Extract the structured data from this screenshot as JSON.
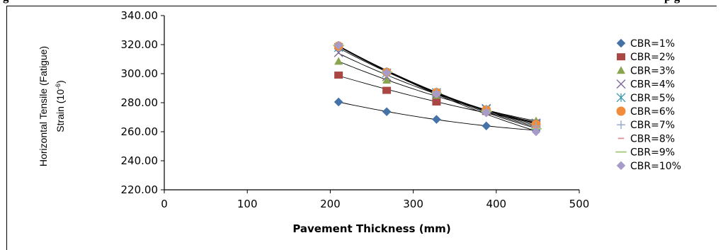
{
  "header": {
    "caption_left": "g",
    "caption_right": "p     g"
  },
  "chart_data": {
    "type": "scatter",
    "title": "",
    "xlabel": "Pavement Thickness (mm)",
    "ylabel_line1": "Horizontal Tensile (Fatigue)",
    "ylabel_line2": "Strain (10",
    "ylabel_exp": "-6",
    "ylabel_end": ")",
    "xlim": [
      0,
      500
    ],
    "ylim": [
      220,
      340
    ],
    "x_ticks": [
      0,
      100,
      200,
      300,
      400,
      500
    ],
    "x_tick_labels": [
      "0",
      "100",
      "200",
      "300",
      "400",
      "500"
    ],
    "y_ticks": [
      220,
      240,
      260,
      280,
      300,
      320,
      340
    ],
    "y_tick_labels": [
      "220.00",
      "240.00",
      "260.00",
      "280.00",
      "300.00",
      "320.00",
      "340.00"
    ],
    "grid": false,
    "legend_position": "right",
    "trendlines": true,
    "x": [
      210,
      268,
      328,
      388,
      448
    ],
    "series": [
      {
        "name": "CBR=1%",
        "marker": "diamond",
        "color": "#4572A7",
        "values": [
          280.5,
          273.8,
          268.5,
          264.0,
          261.0
        ]
      },
      {
        "name": "CBR=2%",
        "marker": "square",
        "color": "#AA4643",
        "values": [
          299.0,
          288.5,
          280.5,
          274.0,
          266.0
        ]
      },
      {
        "name": "CBR=3%",
        "marker": "triangle",
        "color": "#89A54E",
        "values": [
          308.5,
          295.5,
          285.0,
          274.5,
          267.5
        ]
      },
      {
        "name": "CBR=4%",
        "marker": "x",
        "color": "#80699B",
        "values": [
          314.5,
          298.0,
          286.0,
          276.0,
          266.0
        ]
      },
      {
        "name": "CBR=5%",
        "marker": "asterisk",
        "color": "#3D96AE",
        "values": [
          318.0,
          300.5,
          287.0,
          275.5,
          265.5
        ]
      },
      {
        "name": "CBR=6%",
        "marker": "circle",
        "color": "#F08C3A",
        "values": [
          319.0,
          301.0,
          287.0,
          275.0,
          265.0
        ]
      },
      {
        "name": "CBR=7%",
        "marker": "plus",
        "color": "#92A8CD",
        "values": [
          319.5,
          301.5,
          287.5,
          275.0,
          264.0
        ]
      },
      {
        "name": "CBR=8%",
        "marker": "dash",
        "color": "#DB8F8F",
        "values": [
          319.5,
          301.5,
          287.0,
          274.5,
          263.0
        ]
      },
      {
        "name": "CBR=9%",
        "marker": "line",
        "color": "#A4C87A",
        "values": [
          319.5,
          301.0,
          286.5,
          274.0,
          262.0
        ]
      },
      {
        "name": "CBR=10%",
        "marker": "diamond",
        "color": "#A79BC9",
        "values": [
          319.5,
          300.5,
          286.0,
          273.0,
          260.0
        ]
      }
    ]
  }
}
